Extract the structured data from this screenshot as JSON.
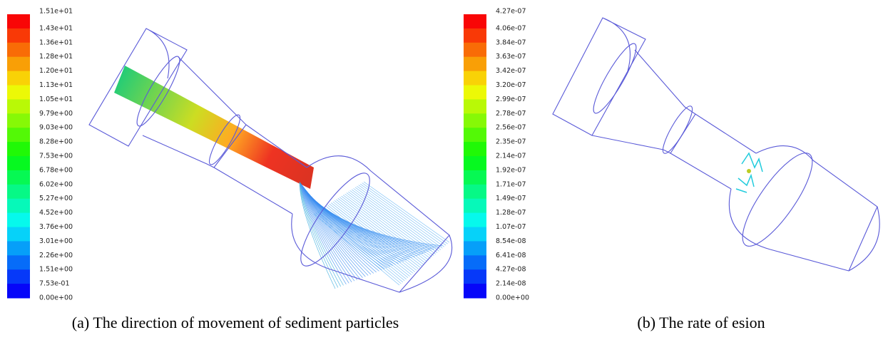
{
  "panels": [
    {
      "legend_labels": [
        "1.51e+01",
        "1.43e+01",
        "1.36e+01",
        "1.28e+01",
        "1.20e+01",
        "1.13e+01",
        "1.05e+01",
        "9.79e+00",
        "9.03e+00",
        "8.28e+00",
        "7.53e+00",
        "6.78e+00",
        "6.02e+00",
        "5.27e+00",
        "4.52e+00",
        "3.76e+00",
        "3.01e+00",
        "2.26e+00",
        "1.51e+00",
        "7.53e-01",
        "0.00e+00"
      ],
      "caption": "(a) The direction of movement of sediment particles"
    },
    {
      "legend_labels": [
        "4.27e-07",
        "4.06e-07",
        "3.84e-07",
        "3.63e-07",
        "3.42e-07",
        "3.20e-07",
        "2.99e-07",
        "2.78e-07",
        "2.56e-07",
        "2.35e-07",
        "2.14e-07",
        "1.92e-07",
        "1.71e-07",
        "1.49e-07",
        "1.28e-07",
        "1.07e-07",
        "8.54e-08",
        "6.41e-08",
        "4.27e-08",
        "2.14e-08",
        "0.00e+00"
      ],
      "caption": "(b) The rate of esion"
    }
  ]
}
